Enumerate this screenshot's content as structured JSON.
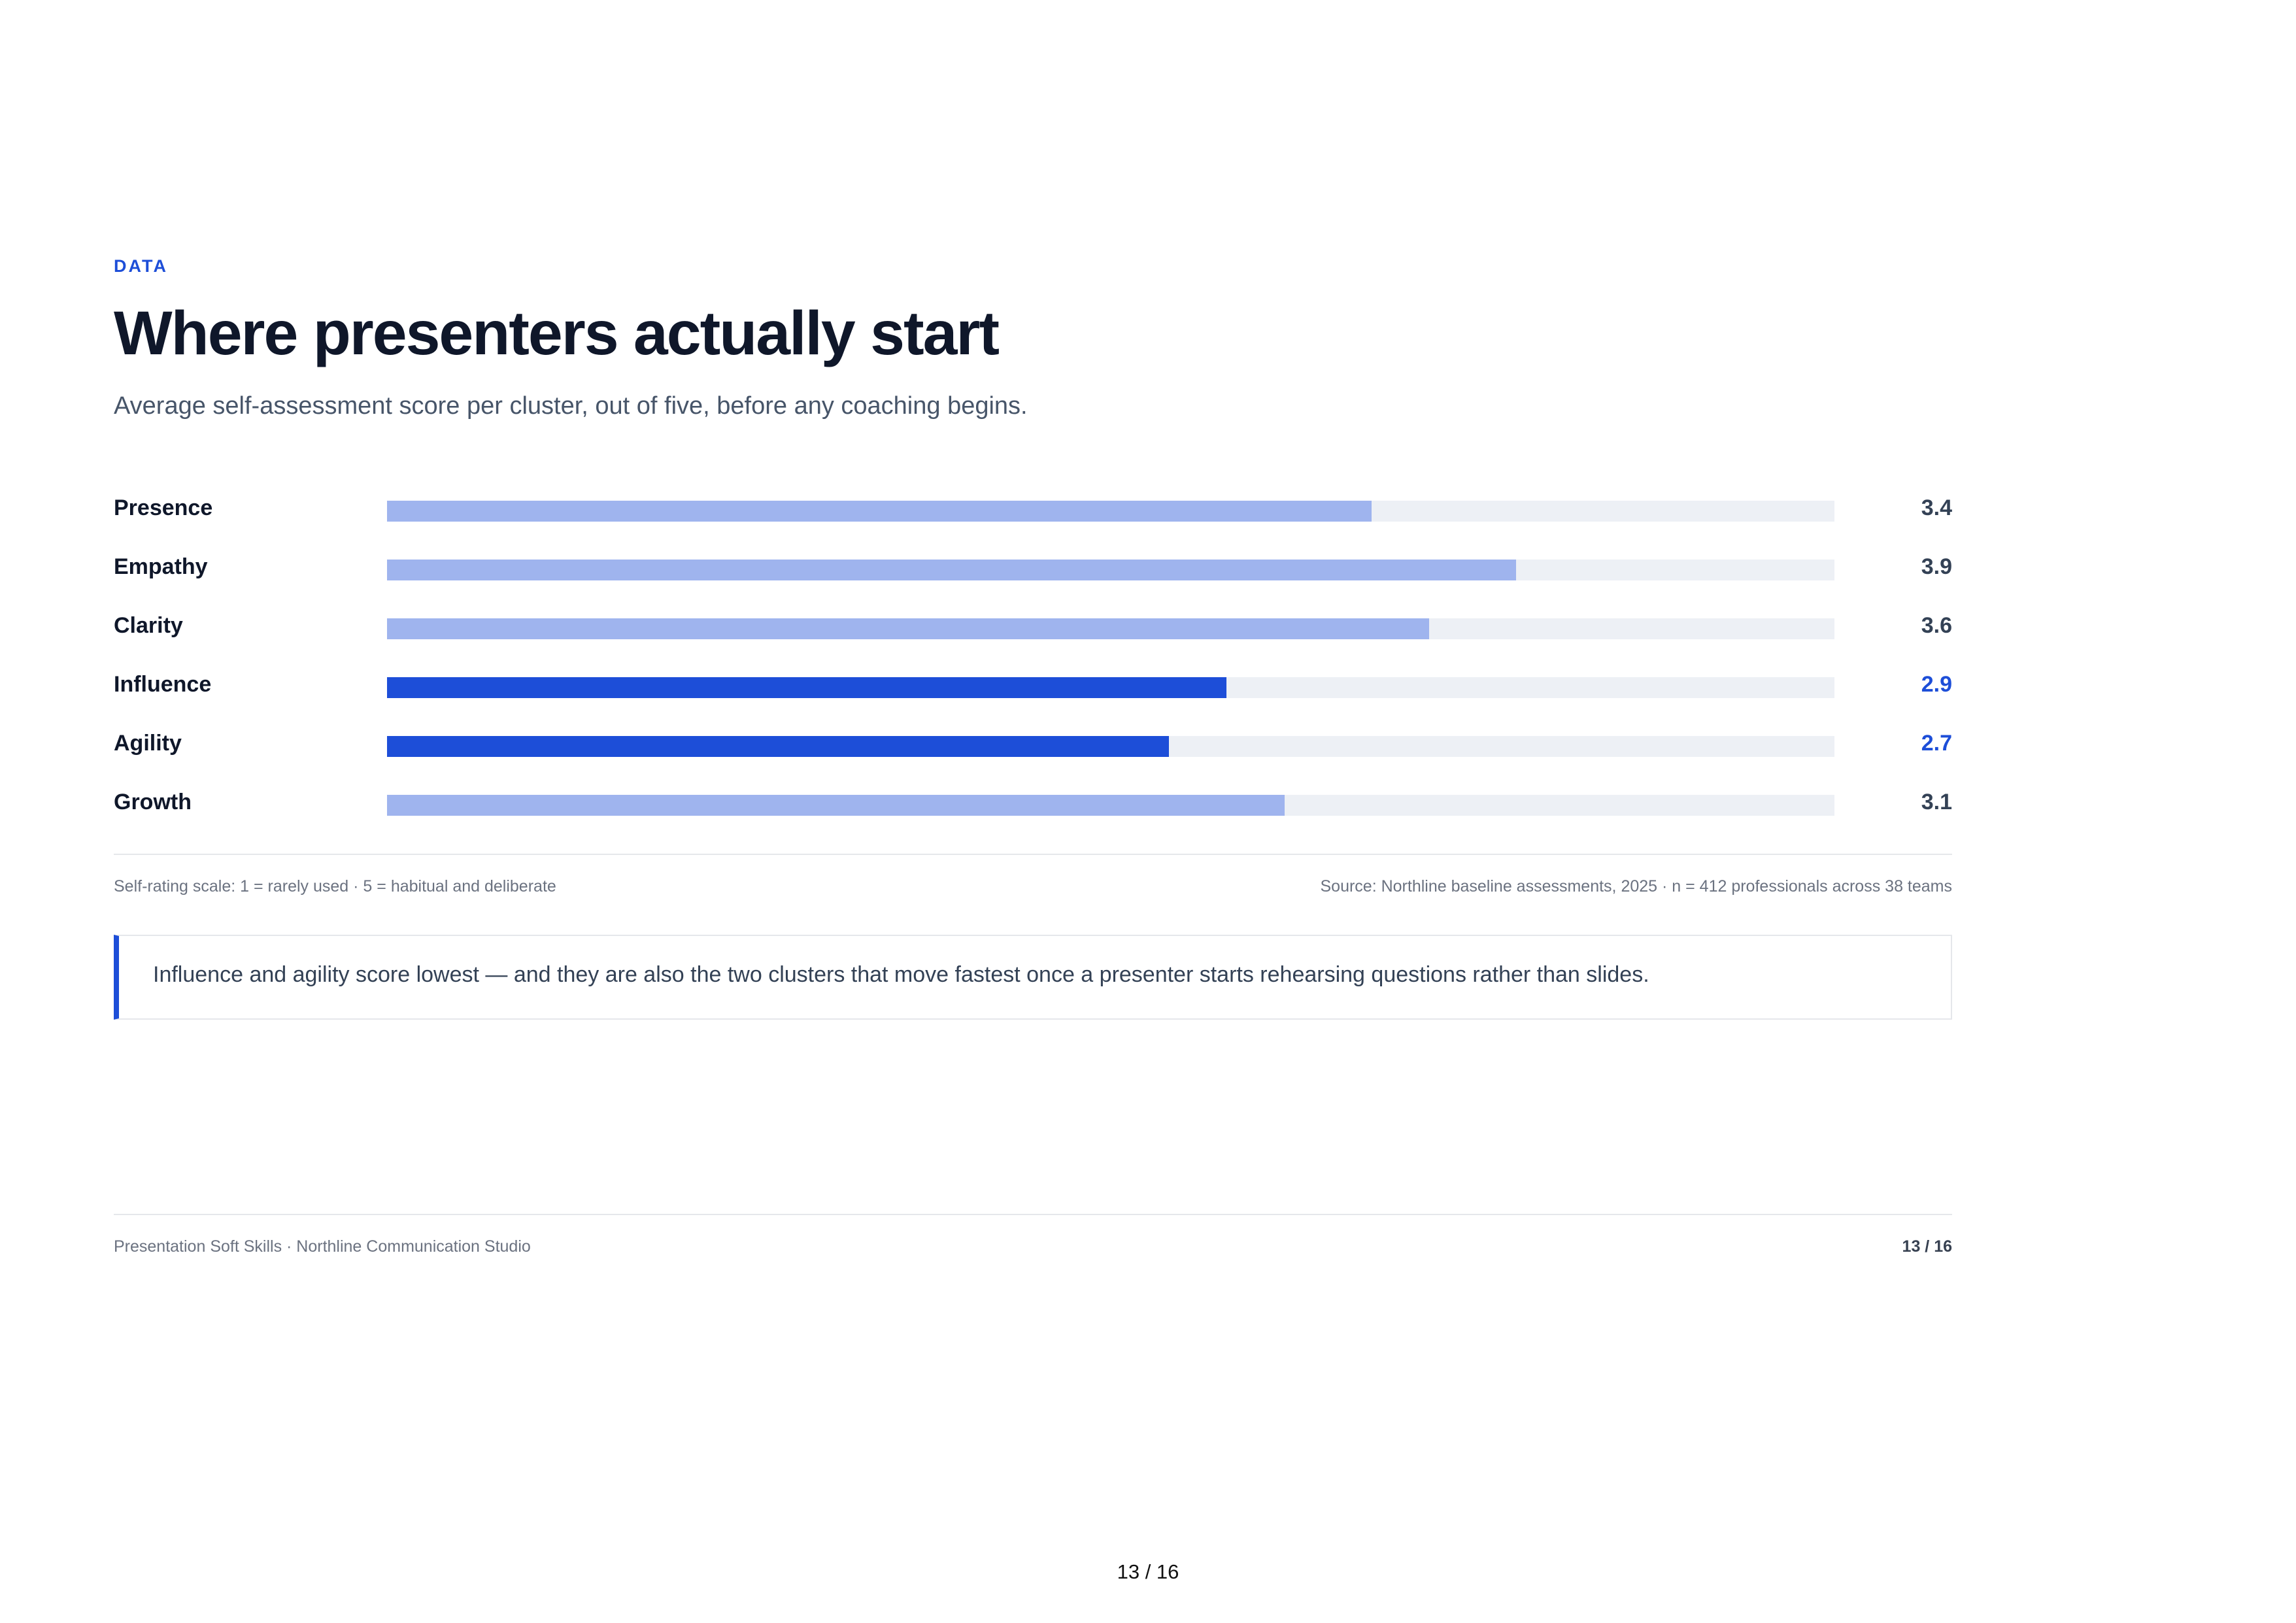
{
  "eyebrow": "DATA",
  "title": "Where presenters actually start",
  "subtitle": "Average self-assessment score per cluster, out of five, before any coaching begins.",
  "colors": {
    "accent": "#1d4ed8",
    "bar_default": "#9fb4ee",
    "bar_highlight": "#1d4ed8",
    "track": "#edf0f5"
  },
  "chart_data": {
    "type": "bar",
    "orientation": "horizontal",
    "categories": [
      "Presence",
      "Empathy",
      "Clarity",
      "Influence",
      "Agility",
      "Growth"
    ],
    "values": [
      3.4,
      3.9,
      3.6,
      2.9,
      2.7,
      3.1
    ],
    "value_labels": [
      "3.4",
      "3.9",
      "3.6",
      "2.9",
      "2.7",
      "3.1"
    ],
    "highlighted": [
      false,
      false,
      false,
      true,
      true,
      false
    ],
    "xlim": [
      0,
      5
    ],
    "grid": false
  },
  "scale_note": "Self-rating scale: 1 = rarely used · 5 = habitual and deliberate",
  "source_note": "Source: Northline baseline assessments, 2025 · n = 412 professionals across 38 teams",
  "callout": "Influence and agility score lowest — and they are also the two clusters that move fastest once a presenter starts rehearsing questions rather than slides.",
  "footer": {
    "left": "Presentation Soft Skills · Northline Communication Studio",
    "right": "13 / 16"
  },
  "page_counter": "13 / 16"
}
